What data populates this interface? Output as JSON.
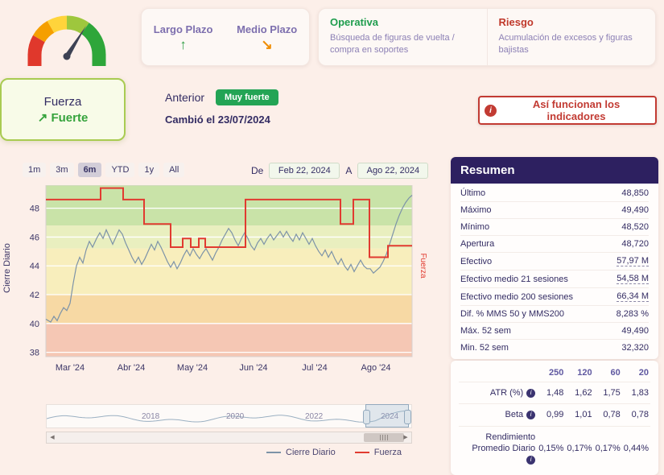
{
  "trend_card": {
    "items": [
      {
        "label": "Largo Plazo",
        "arrow": "↑"
      },
      {
        "label": "Medio Plazo",
        "arrow": "↘"
      }
    ]
  },
  "signal_card": {
    "items": [
      {
        "title": "Operativa",
        "desc": "Búsqueda de figuras de vuelta / compra en soportes"
      },
      {
        "title": "Riesgo",
        "desc": "Acumulación de excesos y figuras bajistas"
      }
    ]
  },
  "strength_card": {
    "title": "Fuerza",
    "arrow": "↗",
    "status": "Fuerte"
  },
  "previous": {
    "label": "Anterior",
    "badge": "Muy fuerte",
    "changed": "Cambió el 23/07/2024"
  },
  "info_button": {
    "label": "Así funcionan los indicadores"
  },
  "toolbar": {
    "ranges": [
      "1m",
      "3m",
      "6m",
      "YTD",
      "1y",
      "All"
    ],
    "selected": "6m",
    "from_label": "De",
    "from_value": "Feb 22, 2024",
    "to_label": "A",
    "to_value": "Ago 22, 2024"
  },
  "chart_data": {
    "type": "line",
    "ylabel": "Cierre Diario",
    "right_label": "Fuerza",
    "y_ticks": [
      48,
      46,
      44,
      42,
      40,
      38
    ],
    "x_ticks": [
      "Mar '24",
      "Abr '24",
      "May '24",
      "Jun '24",
      "Jul '24",
      "Ago '24"
    ],
    "ylim": [
      37.7,
      49.6
    ],
    "bands": [
      {
        "from": 46.8,
        "to": 49.6,
        "color": "#c9e3a8"
      },
      {
        "from": 45.2,
        "to": 46.8,
        "color": "#e9efbf"
      },
      {
        "from": 42.0,
        "to": 45.2,
        "color": "#f8eebc"
      },
      {
        "from": 40.0,
        "to": 42.0,
        "color": "#f7d9a4"
      },
      {
        "from": 37.7,
        "to": 40.0,
        "color": "#f5c7b4"
      }
    ],
    "series": [
      {
        "name": "Cierre Diario",
        "color": "#7d93a8",
        "width": 1.2,
        "points": [
          [
            0,
            40.3
          ],
          [
            6,
            40.1
          ],
          [
            10,
            40.5
          ],
          [
            14,
            40.2
          ],
          [
            18,
            40.7
          ],
          [
            22,
            41.1
          ],
          [
            26,
            40.9
          ],
          [
            30,
            41.4
          ],
          [
            34,
            42.8
          ],
          [
            38,
            44.0
          ],
          [
            42,
            44.6
          ],
          [
            46,
            44.2
          ],
          [
            50,
            45.1
          ],
          [
            54,
            45.7
          ],
          [
            58,
            45.3
          ],
          [
            63,
            45.9
          ],
          [
            67,
            46.3
          ],
          [
            71,
            45.9
          ],
          [
            75,
            46.5
          ],
          [
            79,
            46.0
          ],
          [
            83,
            45.5
          ],
          [
            87,
            46.0
          ],
          [
            91,
            46.5
          ],
          [
            95,
            46.2
          ],
          [
            99,
            45.6
          ],
          [
            103,
            45.1
          ],
          [
            107,
            44.6
          ],
          [
            111,
            44.2
          ],
          [
            115,
            44.6
          ],
          [
            119,
            44.1
          ],
          [
            123,
            44.5
          ],
          [
            127,
            45.0
          ],
          [
            131,
            45.5
          ],
          [
            135,
            45.1
          ],
          [
            139,
            45.7
          ],
          [
            143,
            45.3
          ],
          [
            147,
            44.8
          ],
          [
            151,
            44.3
          ],
          [
            155,
            43.9
          ],
          [
            159,
            44.3
          ],
          [
            163,
            43.8
          ],
          [
            167,
            44.2
          ],
          [
            171,
            44.7
          ],
          [
            175,
            45.1
          ],
          [
            179,
            44.7
          ],
          [
            183,
            45.2
          ],
          [
            187,
            44.8
          ],
          [
            191,
            44.5
          ],
          [
            195,
            44.9
          ],
          [
            199,
            45.2
          ],
          [
            203,
            44.8
          ],
          [
            207,
            44.4
          ],
          [
            211,
            44.9
          ],
          [
            215,
            45.3
          ],
          [
            219,
            45.8
          ],
          [
            223,
            46.2
          ],
          [
            227,
            46.6
          ],
          [
            231,
            46.3
          ],
          [
            235,
            45.8
          ],
          [
            239,
            45.4
          ],
          [
            243,
            45.9
          ],
          [
            247,
            46.3
          ],
          [
            251,
            45.9
          ],
          [
            255,
            45.4
          ],
          [
            259,
            45.1
          ],
          [
            263,
            45.6
          ],
          [
            267,
            45.9
          ],
          [
            271,
            45.5
          ],
          [
            275,
            45.9
          ],
          [
            279,
            46.2
          ],
          [
            283,
            45.8
          ],
          [
            287,
            46.1
          ],
          [
            291,
            46.4
          ],
          [
            295,
            46.0
          ],
          [
            299,
            46.4
          ],
          [
            303,
            46.0
          ],
          [
            307,
            45.7
          ],
          [
            311,
            46.2
          ],
          [
            315,
            45.8
          ],
          [
            319,
            46.3
          ],
          [
            323,
            45.9
          ],
          [
            327,
            45.5
          ],
          [
            331,
            45.9
          ],
          [
            335,
            45.4
          ],
          [
            339,
            45.0
          ],
          [
            343,
            44.7
          ],
          [
            347,
            45.1
          ],
          [
            351,
            44.6
          ],
          [
            355,
            45.0
          ],
          [
            359,
            44.5
          ],
          [
            363,
            44.1
          ],
          [
            367,
            44.5
          ],
          [
            371,
            44.0
          ],
          [
            375,
            43.7
          ],
          [
            379,
            44.1
          ],
          [
            383,
            43.6
          ],
          [
            387,
            44.0
          ],
          [
            391,
            44.4
          ],
          [
            395,
            44.0
          ],
          [
            399,
            43.8
          ],
          [
            403,
            43.8
          ],
          [
            407,
            43.5
          ],
          [
            411,
            43.7
          ],
          [
            415,
            43.9
          ],
          [
            419,
            44.3
          ],
          [
            423,
            44.8
          ],
          [
            427,
            45.5
          ],
          [
            431,
            46.2
          ],
          [
            435,
            46.9
          ],
          [
            439,
            47.5
          ],
          [
            443,
            48.0
          ],
          [
            447,
            48.4
          ],
          [
            451,
            48.7
          ],
          [
            455,
            48.9
          ]
        ]
      },
      {
        "name": "Fuerza",
        "color": "#e13b30",
        "width": 2,
        "points": [
          [
            0,
            48.6
          ],
          [
            68,
            48.6
          ],
          [
            68,
            49.4
          ],
          [
            96,
            49.4
          ],
          [
            96,
            48.6
          ],
          [
            122,
            48.6
          ],
          [
            122,
            46.9
          ],
          [
            155,
            46.9
          ],
          [
            155,
            45.3
          ],
          [
            170,
            45.3
          ],
          [
            170,
            45.9
          ],
          [
            180,
            45.9
          ],
          [
            180,
            45.3
          ],
          [
            190,
            45.3
          ],
          [
            190,
            45.9
          ],
          [
            198,
            45.9
          ],
          [
            198,
            45.3
          ],
          [
            248,
            45.3
          ],
          [
            248,
            48.6
          ],
          [
            366,
            48.6
          ],
          [
            366,
            46.9
          ],
          [
            382,
            46.9
          ],
          [
            382,
            48.6
          ],
          [
            402,
            48.6
          ],
          [
            402,
            44.6
          ],
          [
            425,
            44.6
          ],
          [
            425,
            45.4
          ],
          [
            455,
            45.4
          ]
        ]
      }
    ]
  },
  "navigator": {
    "years": [
      "2018",
      "2020",
      "2022",
      "2024"
    ]
  },
  "legend": {
    "items": [
      {
        "label": "Cierre Diario",
        "color": "#7d93a8"
      },
      {
        "label": "Fuerza",
        "color": "#e13b30"
      }
    ]
  },
  "resumen": {
    "title": "Resumen",
    "rows": [
      {
        "label": "Último",
        "value": "48,850"
      },
      {
        "label": "Máximo",
        "value": "49,490"
      },
      {
        "label": "Mínimo",
        "value": "48,520"
      },
      {
        "label": "Apertura",
        "value": "48,720"
      },
      {
        "label": "Efectivo",
        "value": "57,97 M",
        "u": true
      },
      {
        "label": "Efectivo medio 21 sesiones",
        "value": "54,58 M",
        "u": true
      },
      {
        "label": "Efectivo medio 200 sesiones",
        "value": "66,34 M",
        "u": true
      },
      {
        "label": "Dif. % MMS 50 y MMS200",
        "value": "8,283 %"
      },
      {
        "label": "Máx. 52 sem",
        "value": "49,490"
      },
      {
        "label": "Min. 52 sem",
        "value": "32,320"
      }
    ]
  },
  "stats": {
    "columns": [
      "250",
      "120",
      "60",
      "20"
    ],
    "rows": [
      {
        "label": "ATR (%)",
        "values": [
          "1,48",
          "1,62",
          "1,75",
          "1,83"
        ]
      },
      {
        "label": "Beta",
        "values": [
          "0,99",
          "1,01",
          "0,78",
          "0,78"
        ]
      },
      {
        "label": "Rendimiento Promedio Diario",
        "values": [
          "0,15%",
          "0,17%",
          "0,17%",
          "0,44%"
        ]
      }
    ]
  }
}
